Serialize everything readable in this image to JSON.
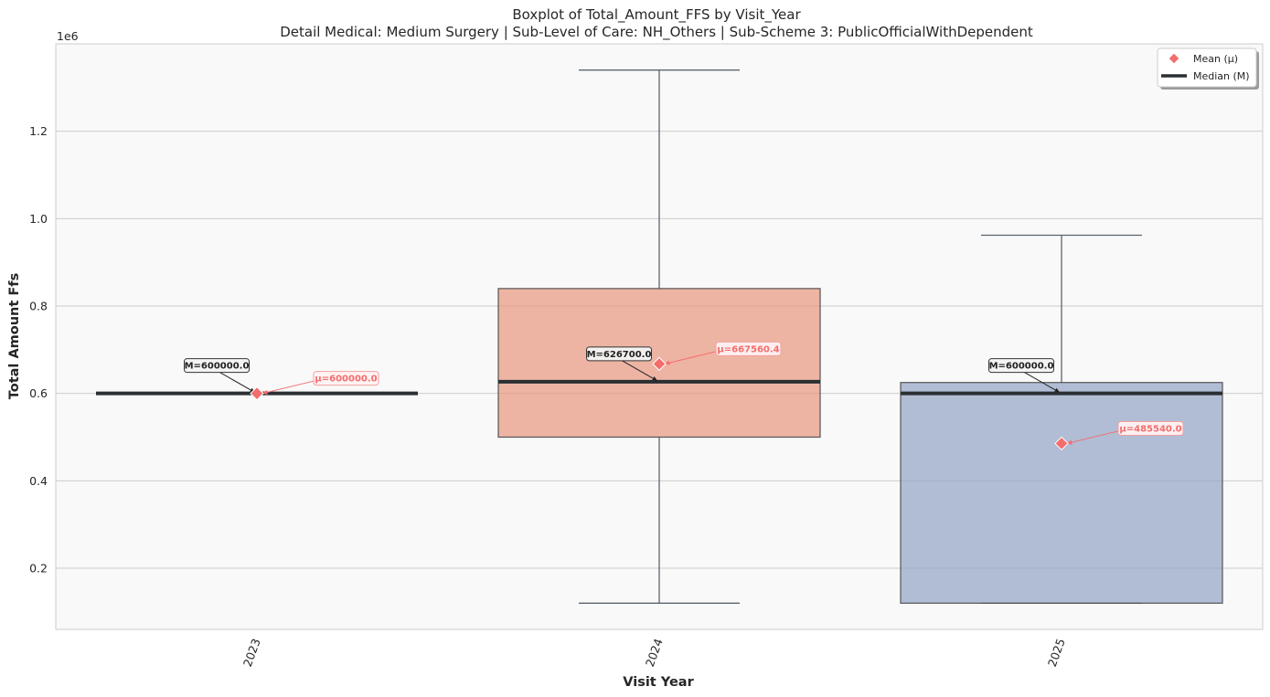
{
  "chart_data": {
    "type": "box",
    "title": "Boxplot of Total_Amount_FFS by Visit_Year",
    "subtitle": "Detail Medical: Medium Surgery | Sub-Level of Care: NH_Others | Sub-Scheme 3: PublicOfficialWithDependent",
    "xlabel": "Visit Year",
    "ylabel": "Total Amount Ffs",
    "y_offset_label": "1e6",
    "ylim": [
      60000,
      1400000
    ],
    "y_ticks": [
      200000,
      400000,
      600000,
      800000,
      1000000,
      1200000
    ],
    "y_tick_labels": [
      "0.2",
      "0.4",
      "0.6",
      "0.8",
      "1.0",
      "1.2"
    ],
    "grid": true,
    "legend_position": "top-right",
    "legend": [
      {
        "label": "Mean (μ)",
        "marker": "diamond",
        "color": "#f46d6d"
      },
      {
        "label": "Median (M)",
        "marker": "line",
        "color": "#2b2f33"
      }
    ],
    "categories": [
      "2023",
      "2024",
      "2025"
    ],
    "boxes": [
      {
        "category": "2023",
        "whisker_low": 600000,
        "q1": 600000,
        "median": 600000,
        "q3": 600000,
        "whisker_high": 600000,
        "mean": 600000,
        "color": "#6c8fc4",
        "median_label": "M=600000.0",
        "mean_label": "μ=600000.0"
      },
      {
        "category": "2024",
        "whisker_low": 120000,
        "q1": 500000,
        "median": 626700,
        "q3": 840000,
        "whisker_high": 1340000,
        "mean": 667560.4,
        "color": "#e8937a",
        "median_label": "M=626700.0",
        "mean_label": "μ=667560.4"
      },
      {
        "category": "2025",
        "whisker_low": 120000,
        "q1": 120000,
        "median": 600000,
        "q3": 625000,
        "whisker_high": 962000,
        "mean": 485540.0,
        "color": "#8f9fc4",
        "median_label": "M=600000.0",
        "mean_label": "μ=485540.0"
      }
    ],
    "colors": {
      "mean": "#f46d6d",
      "median": "#2b2f33",
      "plot_bg": "#f9f9f9",
      "grid": "#cccccc",
      "whisker": "#5a6570"
    }
  }
}
